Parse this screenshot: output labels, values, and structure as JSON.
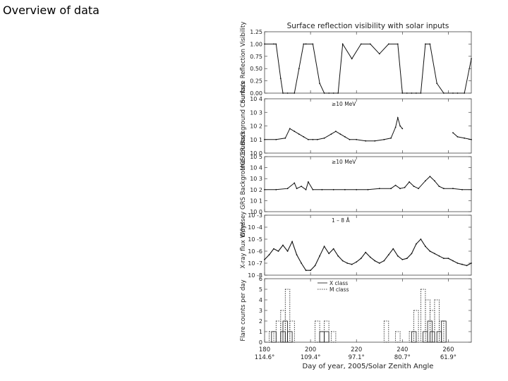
{
  "slide": {
    "title": "Overview of data"
  },
  "figure": {
    "title": "Surface reflection visibility with solar inputs",
    "xlabel": "Day of year, 2005/Solar Zenith Angle",
    "xticks": [
      {
        "day": 180,
        "label": "180",
        "sza": "114.6°"
      },
      {
        "day": 200,
        "label": "200",
        "sza": "109.4°"
      },
      {
        "day": 220,
        "label": "220",
        "sza": "97.1°"
      },
      {
        "day": 240,
        "label": "240",
        "sza": "80.7°"
      },
      {
        "day": 260,
        "label": "260",
        "sza": "61.9°"
      }
    ]
  },
  "chart_data": [
    {
      "type": "line",
      "ylabel": "Surface Reflection Visibility",
      "xlim": [
        180,
        270
      ],
      "ylim": [
        0,
        1.25
      ],
      "yticks": [
        "0.00",
        "0.25",
        "0.50",
        "0.75",
        "1.00",
        "1.25"
      ],
      "x": [
        180,
        184,
        185,
        187,
        188,
        190,
        193,
        195,
        197,
        198,
        201,
        204,
        206,
        208,
        210,
        212,
        214,
        218,
        222,
        226,
        230,
        234,
        238,
        240,
        242,
        244,
        246,
        248,
        250,
        252,
        255,
        258,
        262,
        264,
        267,
        270
      ],
      "y": [
        1.0,
        1.0,
        1.0,
        0.3,
        0.0,
        0.0,
        0.0,
        0.5,
        1.0,
        1.0,
        1.0,
        0.2,
        0.0,
        0.0,
        0.0,
        0.0,
        1.0,
        0.7,
        1.0,
        1.0,
        0.8,
        1.0,
        1.0,
        0.0,
        0.0,
        0.0,
        0.0,
        0.0,
        1.0,
        1.0,
        0.2,
        0.0,
        0.0,
        0.0,
        0.0,
        0.7
      ]
    },
    {
      "type": "line",
      "ylabel": "MGS ER Background Counts/s",
      "annotation": "≥10 MeV",
      "ylim": [
        0,
        4
      ],
      "yticks": [
        "10 0",
        "10 1",
        "10 2",
        "10 3",
        "10 4"
      ],
      "x": [
        180,
        185,
        189,
        191,
        193,
        195,
        197,
        199,
        201,
        203,
        206,
        209,
        211,
        213,
        215,
        217,
        220,
        224,
        228,
        232,
        235,
        237,
        238,
        239,
        240,
        244,
        248,
        252,
        255,
        258,
        261,
        262,
        264,
        267,
        270
      ],
      "y": [
        1.0,
        1.0,
        1.1,
        1.8,
        1.6,
        1.4,
        1.2,
        1.0,
        1.0,
        1.0,
        1.1,
        1.4,
        1.6,
        1.4,
        1.2,
        1.0,
        1.0,
        0.9,
        0.9,
        1.0,
        1.1,
        1.9,
        2.6,
        2.0,
        1.8,
        null,
        null,
        null,
        null,
        null,
        null,
        1.5,
        1.2,
        1.1,
        1.0
      ]
    },
    {
      "type": "line",
      "ylabel": "Odyssey GRS Background Counts/s",
      "annotation": "≥10 MeV",
      "ylim": [
        0,
        5
      ],
      "yticks": [
        "10 0",
        "10 1",
        "10 2",
        "10 3",
        "10 4",
        "10 5"
      ],
      "x": [
        180,
        185,
        190,
        193,
        194,
        196,
        198,
        199,
        201,
        205,
        210,
        215,
        220,
        225,
        230,
        235,
        237,
        239,
        241,
        243,
        245,
        247,
        250,
        252,
        254,
        256,
        258,
        262,
        266,
        270
      ],
      "y": [
        2.0,
        2.0,
        2.1,
        2.6,
        2.1,
        2.3,
        2.0,
        2.7,
        2.0,
        2.0,
        2.0,
        2.0,
        2.0,
        2.0,
        2.1,
        2.1,
        2.4,
        2.1,
        2.2,
        2.7,
        2.3,
        2.1,
        2.8,
        3.2,
        2.8,
        2.3,
        2.1,
        2.1,
        2.0,
        2.0
      ]
    },
    {
      "type": "line",
      "ylabel": "X-ray flux W/m²",
      "annotation": "1 – 8 Å",
      "ylim": [
        -8,
        -3
      ],
      "yticks": [
        "10 -8",
        "10 -7",
        "10 -6",
        "10 -5",
        "10 -4",
        "10 -3"
      ],
      "x": [
        180,
        182,
        184,
        186,
        188,
        190,
        192,
        194,
        196,
        198,
        200,
        202,
        204,
        206,
        208,
        210,
        212,
        214,
        216,
        218,
        220,
        222,
        224,
        226,
        228,
        230,
        232,
        234,
        236,
        238,
        240,
        242,
        244,
        246,
        248,
        250,
        252,
        254,
        256,
        258,
        260,
        262,
        264,
        266,
        268,
        270
      ],
      "y": [
        -6.7,
        -6.3,
        -5.8,
        -6.0,
        -5.5,
        -6.0,
        -5.2,
        -6.3,
        -7.0,
        -7.6,
        -7.6,
        -7.2,
        -6.4,
        -5.6,
        -6.2,
        -5.8,
        -6.4,
        -6.8,
        -7.0,
        -7.1,
        -6.9,
        -6.6,
        -6.1,
        -6.5,
        -6.8,
        -7.0,
        -6.8,
        -6.3,
        -5.8,
        -6.4,
        -6.7,
        -6.6,
        -6.2,
        -5.4,
        -5.0,
        -5.6,
        -6.0,
        -6.2,
        -6.4,
        -6.6,
        -6.6,
        -6.8,
        -7.0,
        -7.1,
        -7.2,
        -7.0
      ]
    },
    {
      "type": "bar",
      "ylabel": "Flare counts per day",
      "ylim": [
        0,
        6
      ],
      "yticks": [
        "0",
        "1",
        "2",
        "3",
        "4",
        "5",
        "6"
      ],
      "legend": [
        {
          "name": "X class",
          "style": "solid"
        },
        {
          "name": "M class",
          "style": "dotted"
        }
      ],
      "series": [
        {
          "name": "X class",
          "style": "solid",
          "x": [
            184,
            188,
            189,
            191,
            205,
            207,
            245,
            250,
            252,
            253,
            256,
            258
          ],
          "y": [
            1,
            1,
            2,
            1,
            1,
            1,
            1,
            1,
            2,
            1,
            1,
            2
          ]
        },
        {
          "name": "M class",
          "style": "dotted",
          "x": [
            183,
            186,
            188,
            190,
            192,
            203,
            205,
            207,
            210,
            233,
            238,
            244,
            246,
            249,
            251,
            253,
            255,
            257
          ],
          "y": [
            1,
            2,
            3,
            5,
            2,
            2,
            1,
            2,
            1,
            2,
            1,
            1,
            3,
            5,
            4,
            3,
            4,
            2
          ]
        }
      ]
    }
  ]
}
